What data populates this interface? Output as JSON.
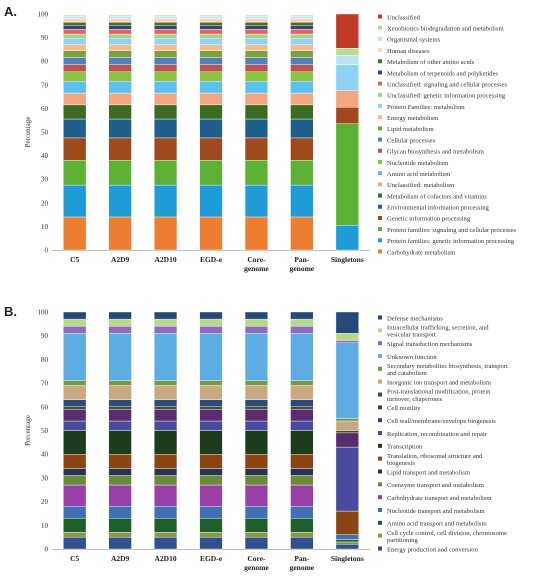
{
  "chart_data": [
    {
      "type": "bar",
      "panel_label": "A.",
      "stacked": true,
      "categories": [
        "C5",
        "A2D9",
        "A2D10",
        "EGD-e",
        "Core-genome",
        "Pan-genome",
        "Singletons"
      ],
      "category_lines": [
        [
          "C5"
        ],
        [
          "A2D9"
        ],
        [
          "A2D10"
        ],
        [
          "EGD-e"
        ],
        [
          "Core-",
          "genome"
        ],
        [
          "Pan-",
          "genome"
        ],
        [
          "Singletons"
        ]
      ],
      "ylabel": "Percentage",
      "ylim": [
        0,
        100
      ],
      "yticks": [
        0,
        10,
        20,
        30,
        40,
        50,
        60,
        70,
        80,
        90,
        100
      ],
      "legend_position": "right",
      "series": [
        {
          "name": "Carbohydrate metabolism",
          "color": "#ed7d31",
          "values": [
            14,
            14,
            14,
            14,
            14,
            14,
            0
          ]
        },
        {
          "name": "Protein families: genetic information processing",
          "color": "#1f9bd7",
          "values": [
            13.5,
            13.5,
            13.5,
            13.5,
            13.5,
            13.5,
            10.5
          ]
        },
        {
          "name": "Protein families: signaling and cellular processes",
          "color": "#5cb033",
          "values": [
            10.5,
            10.5,
            10.5,
            10.5,
            10.5,
            10.5,
            43
          ]
        },
        {
          "name": "Genetic information processing",
          "color": "#9e4a1e",
          "values": [
            9.5,
            9.5,
            9.5,
            9.5,
            9.5,
            9.5,
            7
          ]
        },
        {
          "name": "Environmental information processing",
          "color": "#1f5f8b",
          "values": [
            8,
            8,
            8,
            8,
            8,
            8,
            0
          ]
        },
        {
          "name": "Metabolism of cofactors and vitamins",
          "color": "#3d6b22",
          "values": [
            6,
            6,
            6,
            6,
            6,
            6,
            0
          ]
        },
        {
          "name": "Unclassified: metabolism",
          "color": "#f4a582",
          "values": [
            5,
            5,
            5,
            5,
            5,
            5,
            7
          ]
        },
        {
          "name": "Amino acid metabolism",
          "color": "#5bc0eb",
          "values": [
            5,
            5,
            5,
            5,
            5,
            5,
            0
          ]
        },
        {
          "name": "Nucleotide metabolism",
          "color": "#8cc43f",
          "values": [
            4,
            4,
            4,
            4,
            4,
            4,
            0
          ]
        },
        {
          "name": "Glycan biosynthesis and metabolism",
          "color": "#c0504d",
          "values": [
            3,
            3,
            3,
            3,
            3,
            3,
            0
          ]
        },
        {
          "name": "Cellular processes",
          "color": "#4f81bd",
          "values": [
            3,
            3,
            3,
            3,
            3,
            3,
            0
          ]
        },
        {
          "name": "Lipid metabolism",
          "color": "#7aa33c",
          "values": [
            3,
            3,
            3,
            3,
            3,
            3,
            0
          ]
        },
        {
          "name": "Energy metabolism",
          "color": "#f7b98a",
          "values": [
            2.5,
            2.5,
            2.5,
            2.5,
            2.5,
            2.5,
            0
          ]
        },
        {
          "name": "Protein Families: metabolism",
          "color": "#8fd3f4",
          "values": [
            2.5,
            2.5,
            2.5,
            2.5,
            2.5,
            2.5,
            11
          ]
        },
        {
          "name": "Unclassified: genetic information processing",
          "color": "#a9d08e",
          "values": [
            2,
            2,
            2,
            2,
            2,
            2,
            0
          ]
        },
        {
          "name": "Unclassified: signaling and cellular processes",
          "color": "#e06666",
          "values": [
            2,
            2,
            2,
            2,
            2,
            2,
            0
          ]
        },
        {
          "name": "Metabolism of terpenoids and polyketides",
          "color": "#2e4a7d",
          "values": [
            1.5,
            1.5,
            1.5,
            1.5,
            1.5,
            1.5,
            0
          ]
        },
        {
          "name": "Metabolism of other amino acids",
          "color": "#4e6b2c",
          "values": [
            1.5,
            1.5,
            1.5,
            1.5,
            1.5,
            1.5,
            0
          ]
        },
        {
          "name": "Human diseases",
          "color": "#fbd5b5",
          "values": [
            1.5,
            1.5,
            1.5,
            1.5,
            1.5,
            1.5,
            0
          ]
        },
        {
          "name": "Organismal systems",
          "color": "#bde3f5",
          "values": [
            1,
            1,
            1,
            1,
            1,
            1,
            4
          ]
        },
        {
          "name": "Xenobiotics biodegradation and metabolism",
          "color": "#b6dc8c",
          "values": [
            0.5,
            0.5,
            0.5,
            0.5,
            0.5,
            0.5,
            3
          ]
        },
        {
          "name": "Unclassified",
          "color": "#c0392b",
          "values": [
            0,
            0,
            0,
            0,
            0,
            0,
            14.5
          ]
        }
      ]
    },
    {
      "type": "bar",
      "panel_label": "B.",
      "stacked": true,
      "categories": [
        "C5",
        "A2D9",
        "A2D10",
        "EGD-e",
        "Core-genome",
        "Pan-genome",
        "Singletons"
      ],
      "category_lines": [
        [
          "C5"
        ],
        [
          "A2D9"
        ],
        [
          "A2D10"
        ],
        [
          "EGD-e"
        ],
        [
          "Core-",
          "genome"
        ],
        [
          "Pan-",
          "genome"
        ],
        [
          "Singletons"
        ]
      ],
      "ylabel": "Percentage",
      "ylim": [
        0,
        100
      ],
      "yticks": [
        0,
        10,
        20,
        30,
        40,
        50,
        60,
        70,
        80,
        90,
        100
      ],
      "legend_position": "right",
      "series": [
        {
          "name": "Energy production and conversion",
          "color": "#2f4f8f",
          "values": [
            5,
            5,
            5,
            5,
            5,
            5,
            2
          ]
        },
        {
          "name": "Cell cycle control, cell division, chromosome partitioning",
          "color": "#8a9a3a",
          "values": [
            2,
            2,
            2,
            2,
            2,
            2,
            1
          ]
        },
        {
          "name": "Amino acid transport and metabolism",
          "color": "#1f5f2c",
          "values": [
            6,
            6,
            6,
            6,
            6,
            6,
            1
          ]
        },
        {
          "name": "Nucleotide transport and metabolism",
          "color": "#3f6fb5",
          "values": [
            5,
            5,
            5,
            5,
            5,
            5,
            2
          ]
        },
        {
          "name": "Carbohydrate transport and metabolism",
          "color": "#9b3fa8",
          "values": [
            9,
            9,
            9,
            9,
            9,
            9,
            0
          ]
        },
        {
          "name": "Coenzyme transport and metabolism",
          "color": "#6a8a3a",
          "values": [
            4,
            4,
            4,
            4,
            4,
            4,
            0
          ]
        },
        {
          "name": "Lipid transport and metabolism",
          "color": "#26344f",
          "values": [
            3,
            3,
            3,
            3,
            3,
            3,
            0
          ]
        },
        {
          "name": "Translation, ribosomal structure and biogenesis",
          "color": "#8b4513",
          "values": [
            6,
            6,
            6,
            6,
            6,
            6,
            10
          ]
        },
        {
          "name": "Transcription",
          "color": "#1d3b1d",
          "values": [
            10,
            10,
            10,
            10,
            10,
            10,
            0
          ]
        },
        {
          "name": "Replication, recombination and repair",
          "color": "#4a4aa0",
          "values": [
            4,
            4,
            4,
            4,
            4,
            4,
            27
          ]
        },
        {
          "name": "Cell wall/membrane/envelope biogenesis",
          "color": "#5a2d6e",
          "values": [
            5,
            5,
            5,
            5,
            5,
            5,
            6
          ]
        },
        {
          "name": "Cell motility",
          "color": "#3b5323",
          "values": [
            1,
            1,
            1,
            1,
            1,
            1,
            1
          ]
        },
        {
          "name": "Post-translational modification, protein turnover, chaperones",
          "color": "#2c4a7a",
          "values": [
            3,
            3,
            3,
            3,
            3,
            3,
            0
          ]
        },
        {
          "name": "Inorganic ion transport and metabolism",
          "color": "#c8a882",
          "values": [
            6,
            6,
            6,
            6,
            6,
            6,
            4
          ]
        },
        {
          "name": "Secondary metabolites biosynthesis, transport and catabolism",
          "color": "#7a9a3a",
          "values": [
            2,
            2,
            2,
            2,
            2,
            2,
            1
          ]
        },
        {
          "name": "Unknown function",
          "color": "#5dade2",
          "values": [
            20,
            20,
            20,
            20,
            20,
            20,
            32
          ]
        },
        {
          "name": "Signal transduction mechanisms",
          "color": "#8e6bbf",
          "values": [
            3,
            3,
            3,
            3,
            3,
            3,
            1
          ]
        },
        {
          "name": "Intracellular trafficking, secretion, and vesicular transport",
          "color": "#b8d98a",
          "values": [
            3,
            3,
            3,
            3,
            3,
            3,
            3
          ]
        },
        {
          "name": "Defense mechanisms",
          "color": "#25497a",
          "values": [
            3,
            3,
            3,
            3,
            3,
            3,
            9
          ]
        }
      ]
    }
  ]
}
